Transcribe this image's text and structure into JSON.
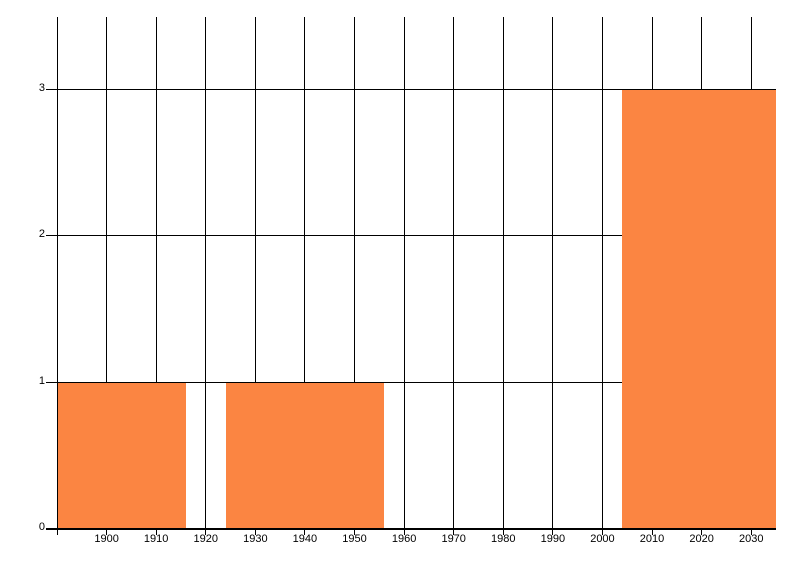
{
  "chart_data": {
    "type": "bar",
    "title": "",
    "xlabel": "",
    "ylabel": "",
    "xlim": [
      1890,
      2035
    ],
    "ylim": [
      0,
      3.5
    ],
    "grid": "both",
    "legend": "none",
    "background_color": "#FFFFFF",
    "bar_color": "#FB8542",
    "grid_color": "#000000",
    "axis_color": "#000000",
    "text_color": "#000000",
    "x_tick_values": [
      1900,
      1910,
      1920,
      1930,
      1940,
      1950,
      1960,
      1970,
      1980,
      1990,
      2000,
      2010,
      2020,
      2030
    ],
    "x_tick_labels": [
      "1900",
      "1910",
      "1920",
      "1930",
      "1940",
      "1950",
      "1960",
      "1970",
      "1980",
      "1990",
      "2000",
      "2010",
      "2020",
      "2030"
    ],
    "y_tick_values": [
      0,
      1,
      2,
      3
    ],
    "y_tick_labels": [
      "0",
      "1",
      "2",
      "3"
    ],
    "bars": [
      {
        "start": 1890,
        "end": 1916,
        "value": 1
      },
      {
        "start": 1924,
        "end": 1956,
        "value": 1
      },
      {
        "start": 2004,
        "end": 2035,
        "value": 3
      }
    ]
  }
}
